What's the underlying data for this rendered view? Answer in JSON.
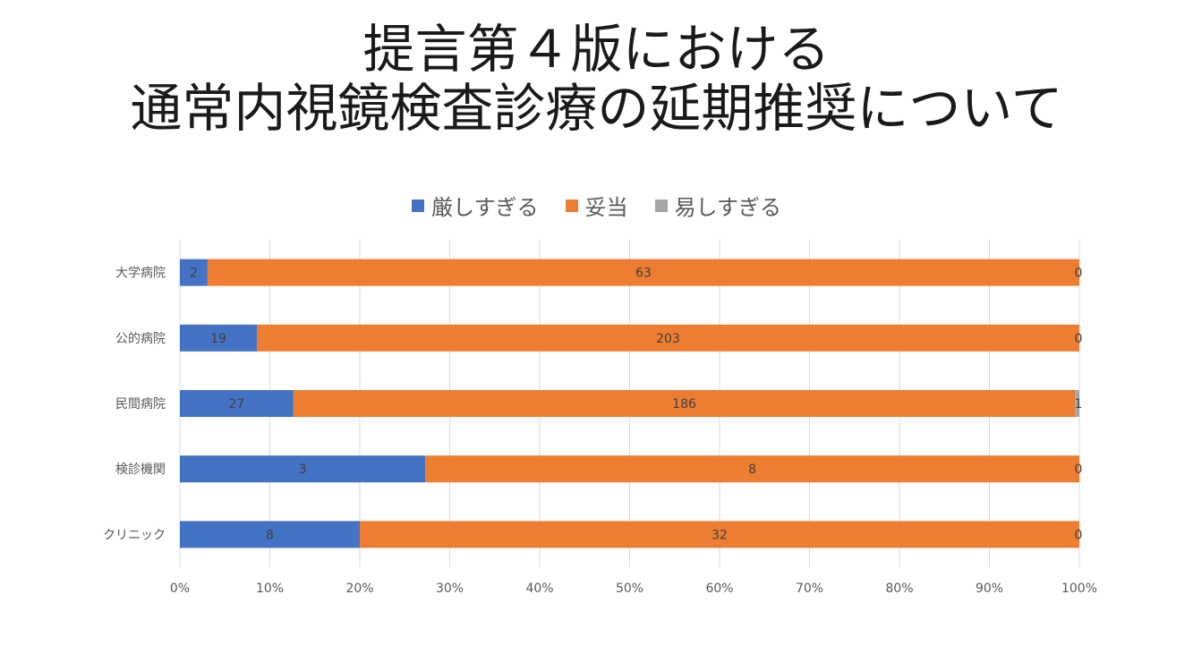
{
  "title": {
    "line1": "提言第４版における",
    "line2": "通常内視鏡検査診療の延期推奨について"
  },
  "chart_data": {
    "type": "bar",
    "orientation": "horizontal",
    "stacked": "percent",
    "categories": [
      "大学病院",
      "公的病院",
      "民間病院",
      "検診機関",
      "クリニック"
    ],
    "series": [
      {
        "name": "厳しすぎる",
        "color": "#4472C4",
        "values": [
          2,
          19,
          27,
          3,
          8
        ]
      },
      {
        "name": "妥当",
        "color": "#ED7D31",
        "values": [
          63,
          203,
          186,
          8,
          32
        ]
      },
      {
        "name": "易しすぎる",
        "color": "#A5A5A5",
        "values": [
          0,
          0,
          1,
          0,
          0
        ]
      }
    ],
    "x_ticks": [
      "0%",
      "10%",
      "20%",
      "30%",
      "40%",
      "50%",
      "60%",
      "70%",
      "80%",
      "90%",
      "100%"
    ],
    "xlim": [
      0,
      100
    ],
    "legend_position": "top",
    "grid": true
  }
}
